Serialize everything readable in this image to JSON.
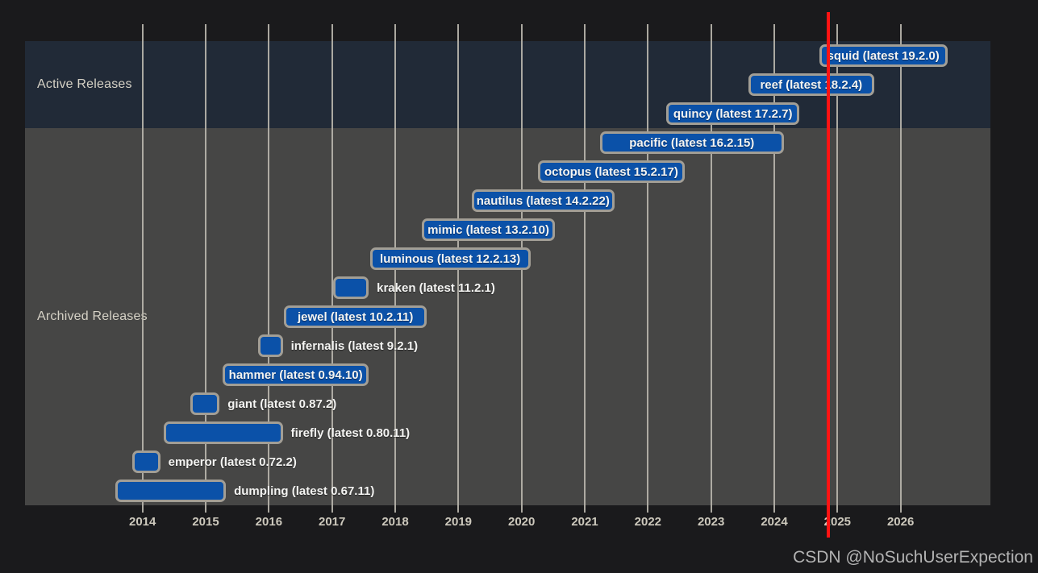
{
  "watermark": "CSDN @NoSuchUserExpection",
  "colors": {
    "page_bg": "#1a1a1c",
    "active_band": "#212a37",
    "archived_band": "#464645",
    "bar_fill": "#0b51a8",
    "bar_border": "#a29e95",
    "gridline": "#b7b4ab",
    "today_line": "#ff1313",
    "axis_text": "#cdc9bd",
    "section_text": "#d5d1c5",
    "bar_text": "#f4f4f2",
    "watermark_text": "#b3b3b3"
  },
  "chart_data": {
    "type": "gantt",
    "title": "",
    "legend": "none",
    "grid": "vertical",
    "x_axis": {
      "tick_years": [
        2014,
        2015,
        2016,
        2017,
        2018,
        2019,
        2020,
        2021,
        2022,
        2023,
        2024,
        2025,
        2026
      ],
      "range": [
        2012.15,
        2027.42
      ]
    },
    "today_marker_year": 2024.86,
    "sections": [
      {
        "id": "active",
        "label": "Active Releases"
      },
      {
        "id": "archived",
        "label": "Archived Releases"
      }
    ],
    "series": [
      {
        "name": "squid",
        "label": "squid (latest 19.2.0)",
        "section": "active",
        "start": 2024.71,
        "end": 2026.74,
        "label_inside": true
      },
      {
        "name": "reef",
        "label": "reef (latest 18.2.4)",
        "section": "active",
        "start": 2023.59,
        "end": 2025.58,
        "label_inside": true
      },
      {
        "name": "quincy",
        "label": "quincy (latest 17.2.7)",
        "section": "active",
        "start": 2022.29,
        "end": 2024.4,
        "label_inside": true
      },
      {
        "name": "pacific",
        "label": "pacific (latest 16.2.15)",
        "section": "archived",
        "start": 2021.24,
        "end": 2024.15,
        "label_inside": true
      },
      {
        "name": "octopus",
        "label": "octopus (latest 15.2.17)",
        "section": "archived",
        "start": 2020.26,
        "end": 2022.58,
        "label_inside": true
      },
      {
        "name": "nautilus",
        "label": "nautilus (latest 14.2.22)",
        "section": "archived",
        "start": 2019.21,
        "end": 2021.47,
        "label_inside": true
      },
      {
        "name": "mimic",
        "label": "mimic (latest 13.2.10)",
        "section": "archived",
        "start": 2018.42,
        "end": 2020.53,
        "label_inside": true
      },
      {
        "name": "luminous",
        "label": "luminous (latest 12.2.13)",
        "section": "archived",
        "start": 2017.6,
        "end": 2020.14,
        "label_inside": true
      },
      {
        "name": "kraken",
        "label": "kraken (latest 11.2.1)",
        "section": "archived",
        "start": 2017.02,
        "end": 2017.58,
        "label_inside": false
      },
      {
        "name": "jewel",
        "label": "jewel (latest 10.2.11)",
        "section": "archived",
        "start": 2016.24,
        "end": 2018.5,
        "label_inside": true
      },
      {
        "name": "infernalis",
        "label": "infernalis (latest 9.2.1)",
        "section": "archived",
        "start": 2015.83,
        "end": 2016.22,
        "label_inside": false
      },
      {
        "name": "hammer",
        "label": "hammer (latest 0.94.10)",
        "section": "archived",
        "start": 2015.27,
        "end": 2017.58,
        "label_inside": true
      },
      {
        "name": "giant",
        "label": "giant (latest 0.87.2)",
        "section": "archived",
        "start": 2014.76,
        "end": 2015.22,
        "label_inside": false
      },
      {
        "name": "firefly",
        "label": "firefly (latest 0.80.11)",
        "section": "archived",
        "start": 2014.34,
        "end": 2016.22,
        "label_inside": false
      },
      {
        "name": "emperor",
        "label": "emperor (latest 0.72.2)",
        "section": "archived",
        "start": 2013.84,
        "end": 2014.28,
        "label_inside": false
      },
      {
        "name": "dumpling",
        "label": "dumpling (latest 0.67.11)",
        "section": "archived",
        "start": 2013.57,
        "end": 2015.32,
        "label_inside": false
      }
    ]
  }
}
